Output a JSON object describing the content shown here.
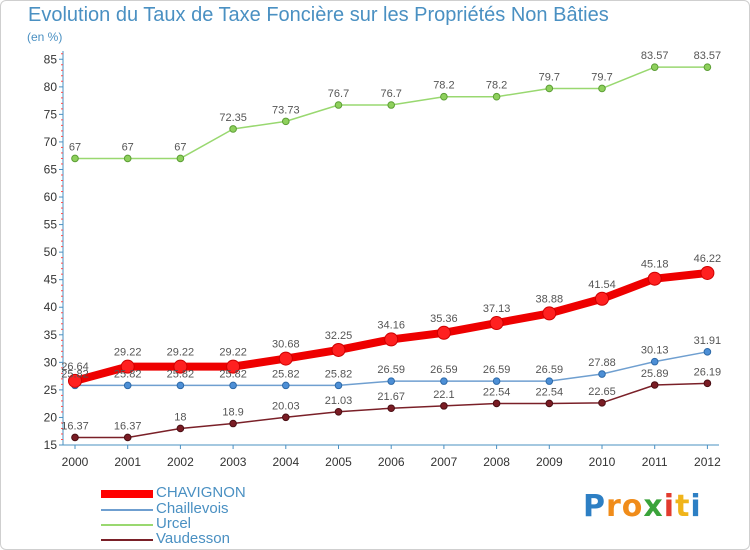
{
  "chart_data": {
    "type": "line",
    "title": "Evolution du Taux de Taxe Foncière sur les Propriétés Non Bâties",
    "subtitle": "(en %)",
    "x": [
      "2000",
      "2001",
      "2002",
      "2003",
      "2004",
      "2005",
      "2006",
      "2007",
      "2008",
      "2009",
      "2010",
      "2011",
      "2012"
    ],
    "yticks": [
      15,
      20,
      25,
      30,
      35,
      40,
      45,
      50,
      55,
      60,
      65,
      70,
      75,
      80,
      85
    ],
    "ylim": [
      15,
      86.5
    ],
    "grid": false,
    "legend_position": "bottom-left",
    "series": [
      {
        "name": "CHAVIGNON",
        "color": "#ff0000",
        "values": [
          26.64,
          29.22,
          29.22,
          29.22,
          30.68,
          32.25,
          34.16,
          35.36,
          37.13,
          38.88,
          41.54,
          45.18,
          46.22
        ],
        "labels": [
          "26.64",
          "29.22",
          "29.22",
          "29.22",
          "30.68",
          "32.25",
          "34.16",
          "35.36",
          "37.13",
          "38.88",
          "41.54",
          "45.18",
          "46.22"
        ]
      },
      {
        "name": "Chaillevois",
        "color": "#6f9fd0",
        "values": [
          25.82,
          25.82,
          25.82,
          25.82,
          25.82,
          25.82,
          26.59,
          26.59,
          26.59,
          26.59,
          27.88,
          30.13,
          31.91
        ],
        "labels": [
          "25.82",
          "25.82",
          "25.82",
          "25.82",
          "25.82",
          "25.82",
          "26.59",
          "26.59",
          "26.59",
          "26.59",
          "27.88",
          "30.13",
          "31.91"
        ]
      },
      {
        "name": "Urcel",
        "color": "#99d870",
        "values": [
          67,
          67,
          67,
          72.35,
          73.73,
          76.7,
          76.7,
          78.2,
          78.2,
          79.7,
          79.7,
          83.57,
          83.57
        ],
        "labels": [
          "67",
          "67",
          "67",
          "72.35",
          "73.73",
          "76.7",
          "76.7",
          "78.2",
          "78.2",
          "79.7",
          "79.7",
          "83.57",
          "83.57"
        ]
      },
      {
        "name": "Vaudesson",
        "color": "#7a2028",
        "values": [
          16.37,
          16.37,
          18,
          18.9,
          20.03,
          21.03,
          21.67,
          22.1,
          22.54,
          22.54,
          22.65,
          25.89,
          26.19
        ],
        "labels": [
          "16.37",
          "16.37",
          "18",
          "18.9",
          "20.03",
          "21.03",
          "21.67",
          "22.1",
          "22.54",
          "22.54",
          "22.65",
          "25.89",
          "26.19"
        ]
      }
    ]
  },
  "logo": {
    "letters": [
      "P",
      "r",
      "o",
      "x",
      "i",
      "t",
      "i"
    ],
    "colors": [
      "#2d7fc4",
      "#f08c1a",
      "#f08c1a",
      "#3aa33a",
      "#e23b2e",
      "#f0b41a",
      "#2d7fc4"
    ]
  }
}
